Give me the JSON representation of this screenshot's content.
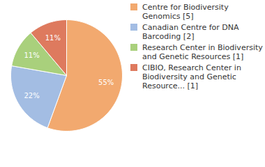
{
  "chart_data": {
    "type": "pie",
    "categories": [
      "Centre for Biodiversity Genomics [5]",
      "Canadian Centre for DNA Barcoding [2]",
      "Research Center in Biodiversity and Genetic Resources [1]",
      "CIBIO, Research Center in Biodiversity and Genetic Resource... [1]"
    ],
    "values": [
      55,
      22,
      11,
      11
    ],
    "value_labels": [
      "55%",
      "22%",
      "11%",
      "11%"
    ],
    "colors": [
      "#f2a96f",
      "#a3bde3",
      "#a9d07c",
      "#de7a5e"
    ],
    "data_labels": true,
    "legend": "right"
  }
}
